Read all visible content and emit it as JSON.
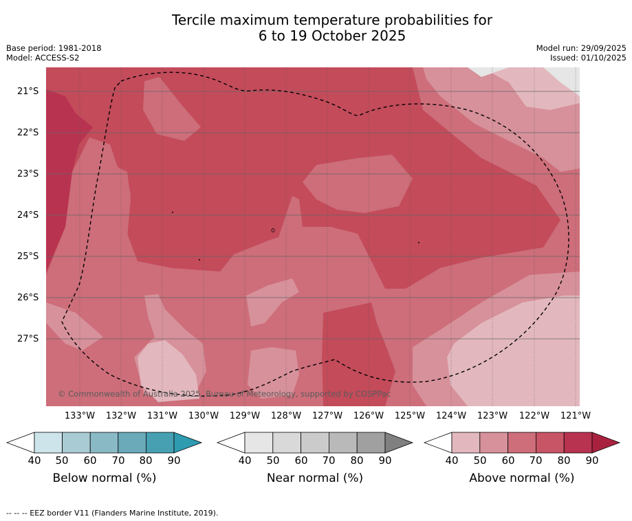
{
  "title_line1": "Tercile maximum temperature probabilities for",
  "title_line2": "6 to 19 October 2025",
  "base_period": "Base period: 1981-2018",
  "model": "Model: ACCESS-S2",
  "model_run": "Model run: 29/09/2025",
  "issued": "Issued: 01/10/2025",
  "lat_labels": [
    "21°S",
    "22°S",
    "23°S",
    "24°S",
    "25°S",
    "26°S",
    "27°S"
  ],
  "lon_labels": [
    "133°W",
    "132°W",
    "131°W",
    "130°W",
    "129°W",
    "128°W",
    "127°W",
    "126°W",
    "125°W",
    "124°W",
    "123°W",
    "122°W",
    "121°W"
  ],
  "copyright": "© Commonwealth of Australia 2025, Bureau of Meteorology, supported by COSPPac",
  "colorbars": [
    {
      "title": "Below normal (%)",
      "ticks": [
        "40",
        "50",
        "60",
        "70",
        "80",
        "90"
      ],
      "colors": [
        "#ffffff",
        "#cde4ea",
        "#a9cbd4",
        "#8ab9c6",
        "#6aaab9",
        "#46a0b2",
        "#2e9bb0"
      ]
    },
    {
      "title": "Near normal (%)",
      "ticks": [
        "40",
        "50",
        "60",
        "70",
        "80",
        "90"
      ],
      "colors": [
        "#ffffff",
        "#e6e6e6",
        "#d9d9d9",
        "#cbcbcb",
        "#b9b9b9",
        "#a0a0a0",
        "#808080"
      ]
    },
    {
      "title": "Above normal (%)",
      "ticks": [
        "40",
        "50",
        "60",
        "70",
        "80",
        "90"
      ],
      "colors": [
        "#ffffff",
        "#e2b8be",
        "#d7919b",
        "#cd6e7a",
        "#c75566",
        "#b83350",
        "#a8223f"
      ]
    }
  ],
  "map_colors": {
    "pct_40_50": "#e2b8be",
    "pct_50_60": "#d7919b",
    "pct_60_70": "#cd6e7a",
    "pct_70_80": "#c34b5a",
    "pct_80_90": "#b83350",
    "near_50_60": "#e6e6e6"
  },
  "footnote": "--  --  -- EEZ border V11 (Flanders Marine Institute, 2019)."
}
